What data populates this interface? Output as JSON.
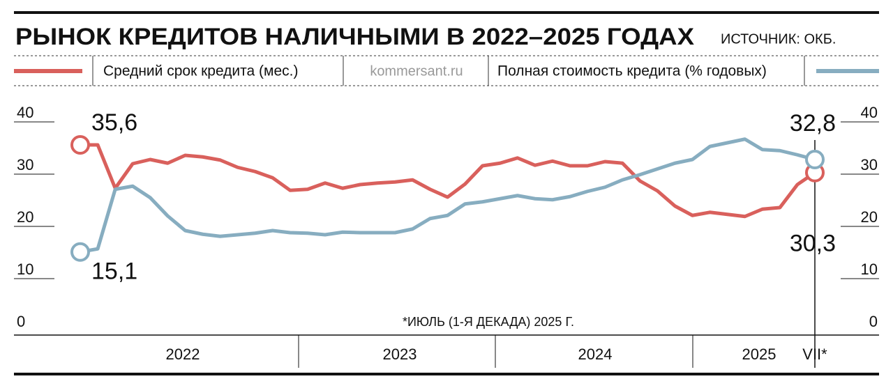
{
  "chart_data": {
    "type": "line",
    "title": "РЫНОК КРЕДИТОВ НАЛИЧНЫМИ В 2022–2025 ГОДАХ",
    "source": "ИСТОЧНИК: ОКБ.",
    "site": "kommersant.ru",
    "footnote": "*ИЮЛЬ (1-Я ДЕКАДА) 2025 Г.",
    "year_labels": [
      "2022",
      "2023",
      "2024",
      "2025",
      "VII*"
    ],
    "categories": [
      null,
      null,
      null,
      null,
      null,
      null,
      null,
      null,
      null,
      null,
      null,
      null,
      null,
      null,
      null,
      null,
      null,
      null,
      null,
      null,
      null,
      null,
      null,
      null,
      null,
      null,
      null,
      null,
      null,
      null,
      null,
      null,
      null,
      null,
      null,
      null,
      null,
      null,
      null,
      null,
      null,
      null,
      null
    ],
    "ylim": [
      0,
      40
    ],
    "yticks": [
      0,
      10,
      20,
      30,
      40
    ],
    "y2lim": [
      0,
      40
    ],
    "y2ticks": [
      0,
      10,
      20,
      30,
      40
    ],
    "series": [
      {
        "name": "Средний срок кредита (мес.)",
        "color": "#d9605c",
        "axis": "y",
        "values": [
          35.6,
          35.6,
          27.3,
          32,
          32.8,
          32.1,
          33.6,
          33.3,
          32.7,
          31.3,
          30.5,
          29.3,
          26.9,
          27.1,
          28.3,
          27.3,
          28,
          28.3,
          28.5,
          28.9,
          27.1,
          25.6,
          28.1,
          31.6,
          32.1,
          33.1,
          31.7,
          32.5,
          31.6,
          31.6,
          32.4,
          32.1,
          28.7,
          26.8,
          23.9,
          22.1,
          22.7,
          22.3,
          21.9,
          23.3,
          23.6,
          28,
          30.3
        ],
        "value_labels": [
          "35,6",
          null,
          null,
          null,
          null,
          null,
          null,
          null,
          null,
          null,
          null,
          null,
          null,
          null,
          null,
          null,
          null,
          null,
          null,
          null,
          null,
          null,
          null,
          null,
          null,
          null,
          null,
          null,
          null,
          null,
          null,
          null,
          null,
          null,
          null,
          null,
          null,
          null,
          null,
          null,
          null,
          null,
          "30,3"
        ]
      },
      {
        "name": "Полная стоимость кредита (% годовых)",
        "color": "#87adc0",
        "axis": "y2",
        "values": [
          15.1,
          15.7,
          27.1,
          27.7,
          25.5,
          22,
          19.2,
          18.5,
          18.1,
          18.4,
          18.7,
          19.2,
          18.8,
          18.7,
          18.4,
          18.9,
          18.8,
          18.8,
          18.8,
          19.5,
          21.5,
          22.1,
          24.3,
          24.7,
          25.3,
          25.9,
          25.3,
          25.1,
          25.7,
          26.7,
          27.5,
          28.9,
          29.9,
          31,
          32.1,
          32.8,
          35.3,
          36,
          36.7,
          34.7,
          34.5,
          33.7,
          32.8
        ],
        "value_labels": [
          "15,1",
          null,
          null,
          null,
          null,
          null,
          null,
          null,
          null,
          null,
          null,
          null,
          null,
          null,
          null,
          null,
          null,
          null,
          null,
          null,
          null,
          null,
          null,
          null,
          null,
          null,
          null,
          null,
          null,
          null,
          null,
          null,
          null,
          null,
          null,
          null,
          null,
          null,
          null,
          null,
          null,
          null,
          "32,8"
        ]
      }
    ]
  }
}
